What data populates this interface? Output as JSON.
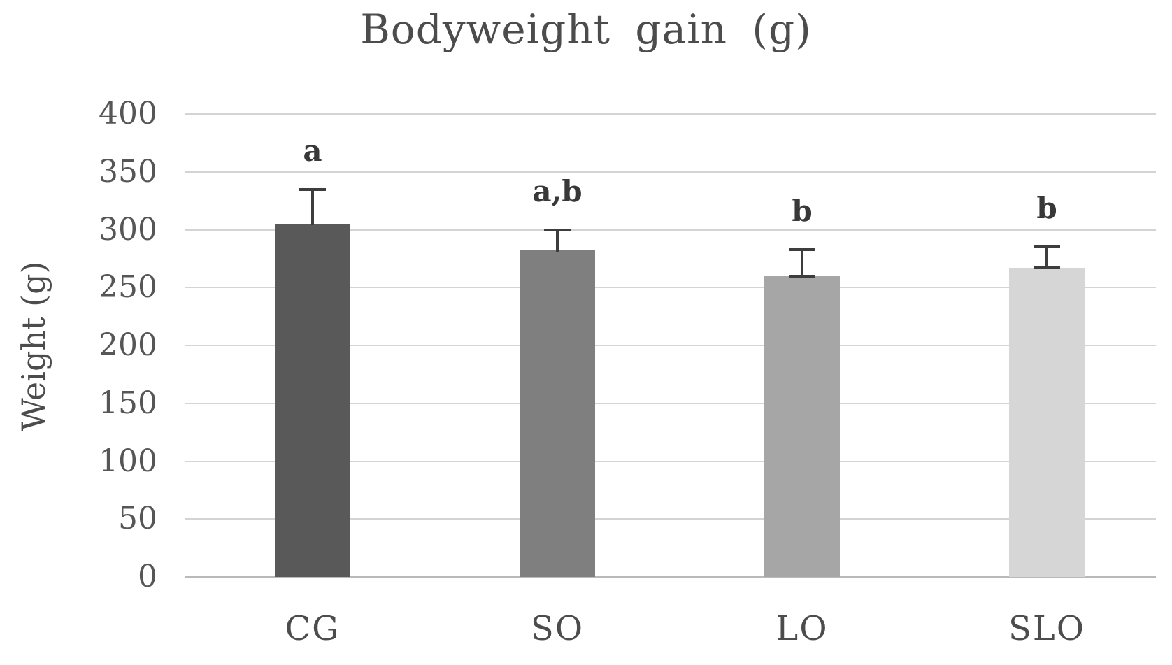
{
  "chart_data": {
    "type": "bar",
    "title": "Bodyweight gain (g)",
    "xlabel": "",
    "ylabel": "Weight (g)",
    "categories": [
      "CG",
      "SO",
      "LO",
      "SLO"
    ],
    "values": [
      305,
      282,
      260,
      267
    ],
    "errors_plus": [
      30,
      18,
      23,
      18
    ],
    "significance_labels": [
      "a",
      "a,b",
      "b",
      "b"
    ],
    "bar_colors": [
      "#595959",
      "#7f7f7f",
      "#a6a6a6",
      "#d6d6d6"
    ],
    "ylim": [
      0,
      400
    ],
    "ytick_step": 50,
    "yticks": [
      400,
      350,
      300,
      250,
      200,
      150,
      100,
      50,
      0
    ],
    "grid": true,
    "legend_position": "none",
    "error_caps_bottom": [
      false,
      false,
      true,
      true
    ],
    "style_colors": {
      "gridline": "#d4d4d4",
      "axis_line": "#b9b9b9",
      "error_bar": "#3d3d3d",
      "tick_text": "#565656",
      "label_text": "#4c4c4c",
      "sig_text": "#383838",
      "background": "#ffffff"
    }
  }
}
